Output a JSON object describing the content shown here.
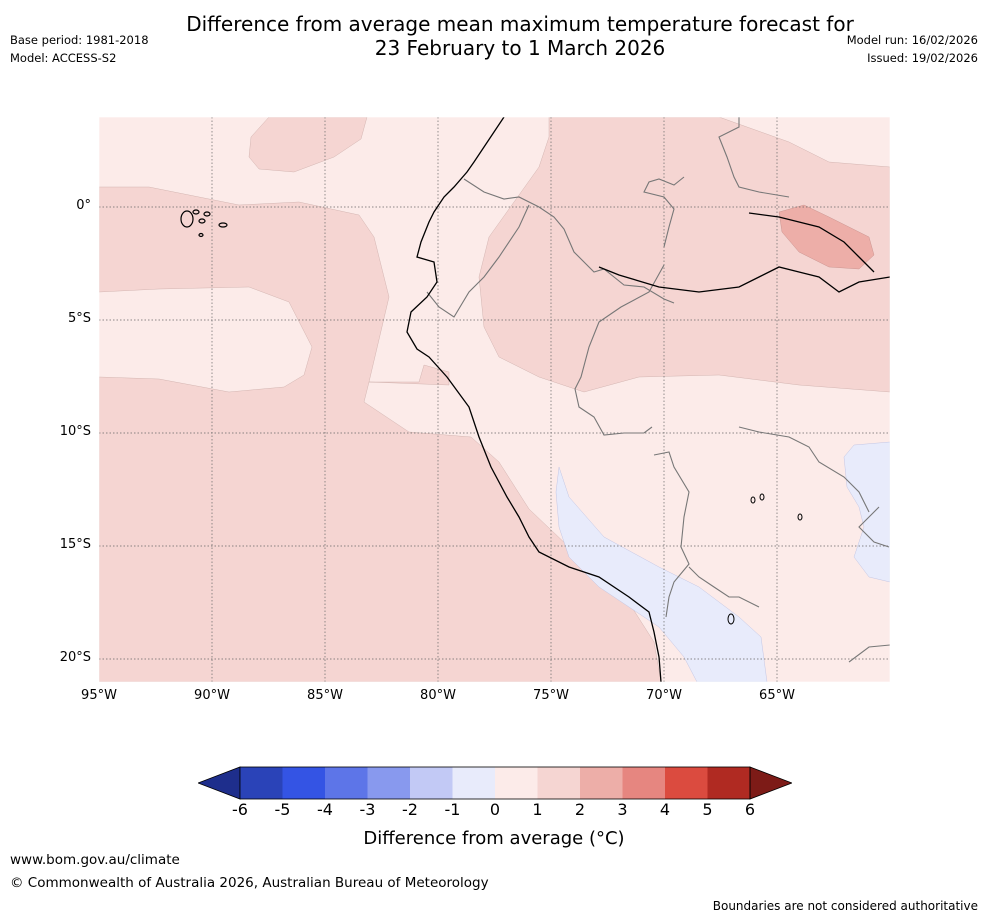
{
  "title": {
    "line1": "Difference from average mean maximum temperature forecast for",
    "line2": "23 February to 1 March 2026"
  },
  "meta": {
    "base_period": "Base period: 1981-2018",
    "model": "Model: ACCESS-S2",
    "model_run": "Model run: 16/02/2026",
    "issued": "Issued: 19/02/2026"
  },
  "map": {
    "lat_labels": [
      "0°",
      "5°S",
      "10°S",
      "15°S",
      "20°S"
    ],
    "lon_labels": [
      "95°W",
      "90°W",
      "85°W",
      "80°W",
      "75°W",
      "70°W",
      "65°W"
    ]
  },
  "colorbar": {
    "ticks": [
      "-6",
      "-5",
      "-4",
      "-3",
      "-2",
      "-1",
      "0",
      "1",
      "2",
      "3",
      "4",
      "5",
      "6"
    ],
    "colors": [
      "#1e2e8c",
      "#2a43b8",
      "#3454e4",
      "#5d75e8",
      "#8899ee",
      "#c2c9f5",
      "#e8ebfb",
      "#fcebe9",
      "#f5d5d2",
      "#edaea8",
      "#e68680",
      "#db4b3f",
      "#b02a22",
      "#7d1b17"
    ],
    "label": "Difference from average ($^\\circ$C)",
    "label_display": "Difference from average (°C)"
  },
  "footer": {
    "website": "www.bom.gov.au/climate",
    "copyright": "© Commonwealth of Australia 2026, Australian Bureau of Meteorology",
    "disclaimer": "Boundaries are not considered authoritative"
  }
}
